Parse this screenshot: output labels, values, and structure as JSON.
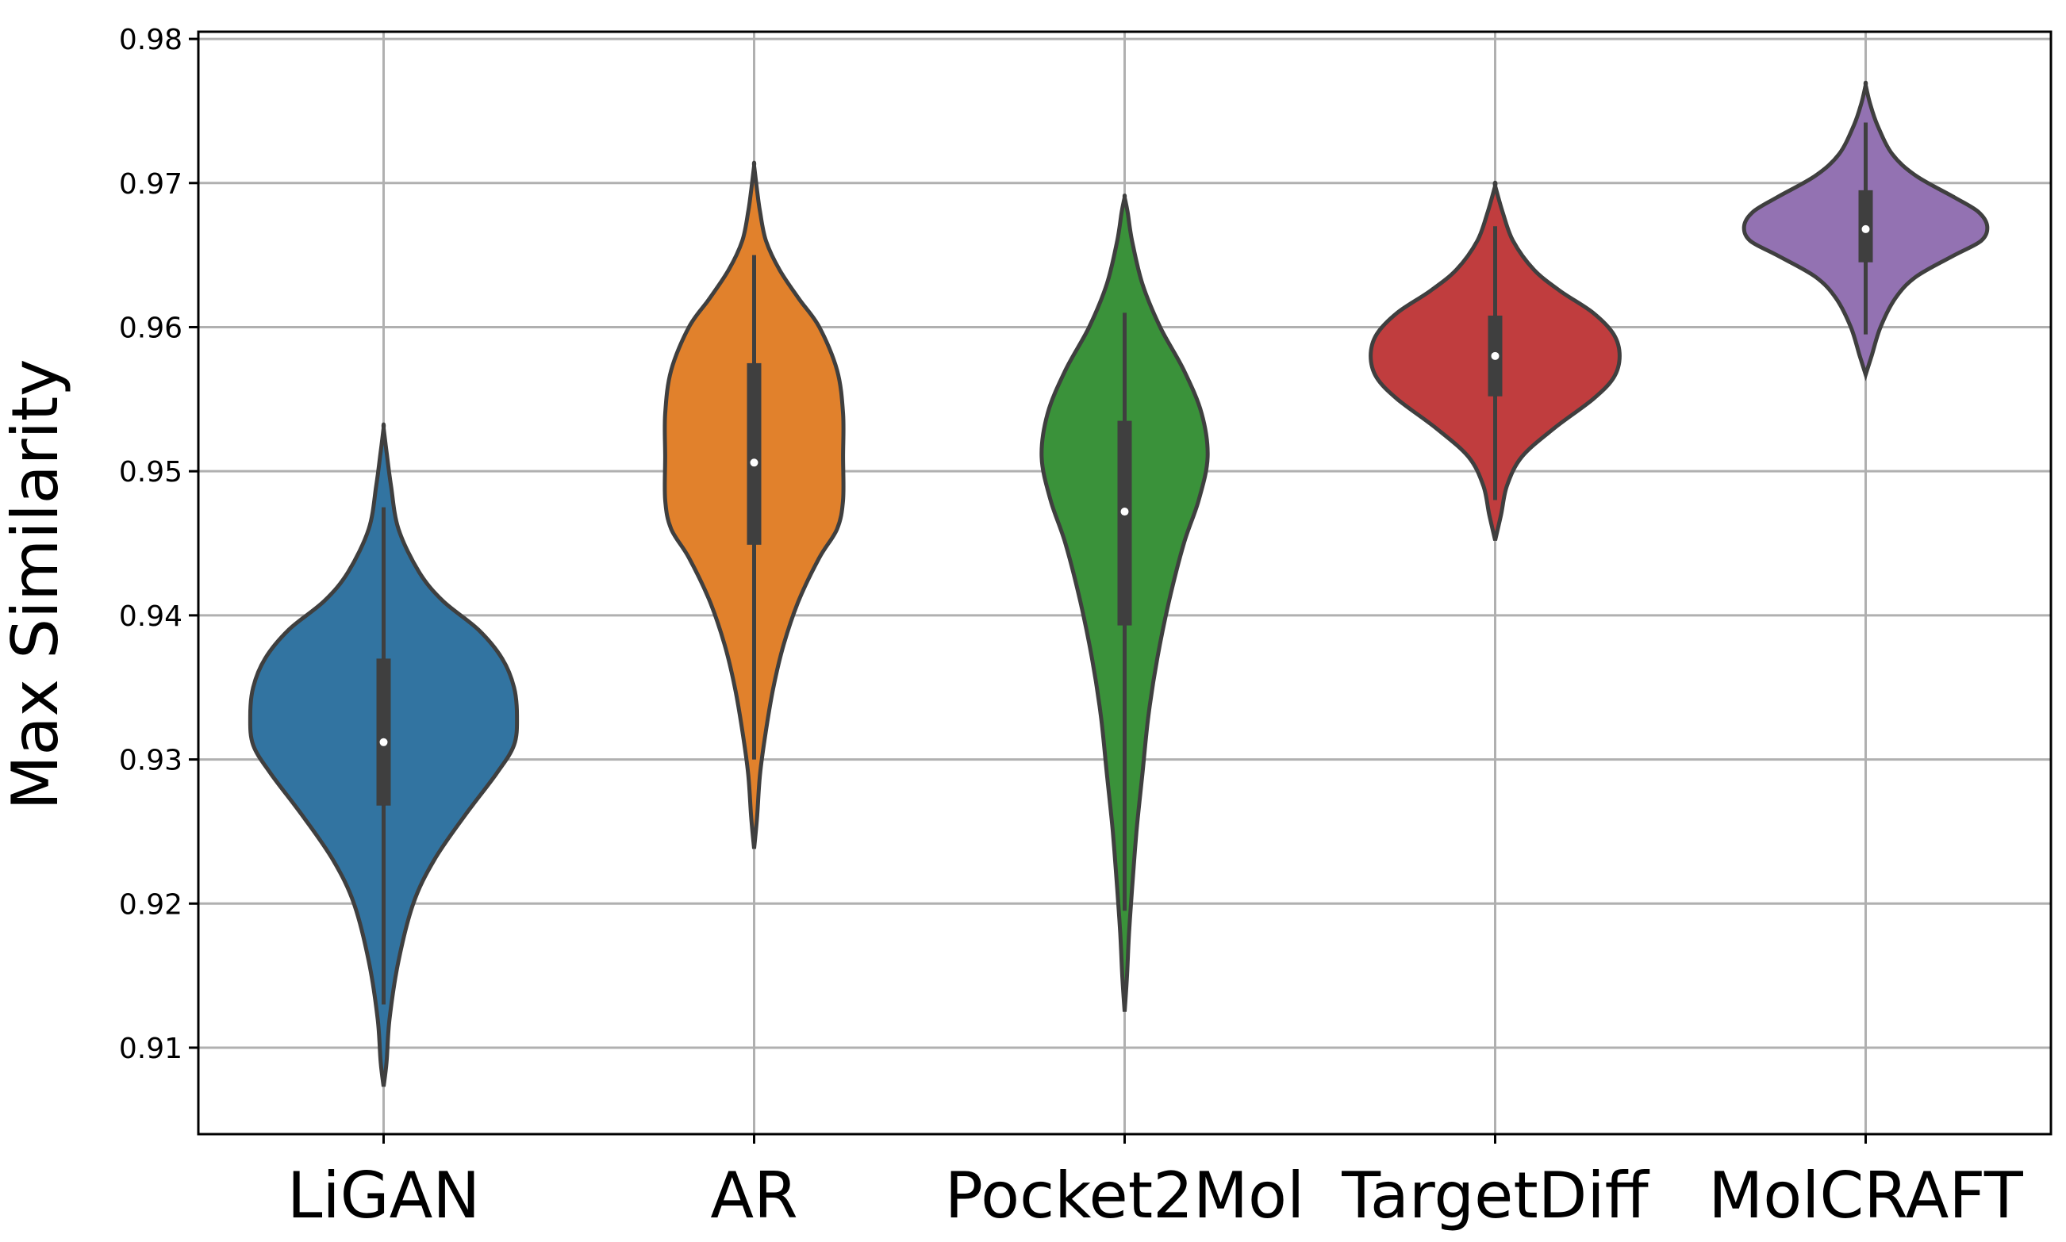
{
  "chart_data": {
    "type": "violin",
    "title": "",
    "xlabel": "",
    "ylabel": "Max Similarity",
    "ylim": [
      0.904,
      0.9805
    ],
    "yticks": [
      "0.91",
      "0.92",
      "0.93",
      "0.94",
      "0.95",
      "0.96",
      "0.97",
      "0.98"
    ],
    "grid": true,
    "categories": [
      "LiGAN",
      "AR",
      "Pocket2Mol",
      "TargetDiff",
      "MolCRAFT"
    ],
    "series": [
      {
        "color": "#3274a1",
        "median": 0.9312,
        "q1": 0.9268,
        "q3": 0.937,
        "whisker_low": 0.913,
        "whisker_high": 0.9475,
        "profile": [
          [
            0.9073,
            0
          ],
          [
            0.909,
            0.01
          ],
          [
            0.912,
            0.02
          ],
          [
            0.916,
            0.05
          ],
          [
            0.92,
            0.1
          ],
          [
            0.923,
            0.17
          ],
          [
            0.926,
            0.27
          ],
          [
            0.929,
            0.38
          ],
          [
            0.931,
            0.44
          ],
          [
            0.933,
            0.45
          ],
          [
            0.935,
            0.44
          ],
          [
            0.937,
            0.4
          ],
          [
            0.939,
            0.32
          ],
          [
            0.941,
            0.2
          ],
          [
            0.943,
            0.12
          ],
          [
            0.946,
            0.05
          ],
          [
            0.949,
            0.025
          ],
          [
            0.951,
            0.012
          ],
          [
            0.953,
            0
          ]
        ]
      },
      {
        "color": "#e1812c",
        "median": 0.9506,
        "q1": 0.9449,
        "q3": 0.9575,
        "whisker_low": 0.93,
        "whisker_high": 0.965,
        "profile": [
          [
            0.9238,
            0
          ],
          [
            0.926,
            0.01
          ],
          [
            0.929,
            0.02
          ],
          [
            0.932,
            0.04
          ],
          [
            0.935,
            0.065
          ],
          [
            0.938,
            0.1
          ],
          [
            0.941,
            0.15
          ],
          [
            0.944,
            0.22
          ],
          [
            0.946,
            0.28
          ],
          [
            0.948,
            0.3
          ],
          [
            0.951,
            0.3
          ],
          [
            0.954,
            0.3
          ],
          [
            0.957,
            0.28
          ],
          [
            0.96,
            0.22
          ],
          [
            0.962,
            0.15
          ],
          [
            0.964,
            0.085
          ],
          [
            0.966,
            0.04
          ],
          [
            0.968,
            0.02
          ],
          [
            0.9695,
            0.01
          ],
          [
            0.9712,
            0
          ]
        ]
      },
      {
        "color": "#3a923a",
        "median": 0.9472,
        "q1": 0.9393,
        "q3": 0.9535,
        "whisker_low": 0.9195,
        "whisker_high": 0.961,
        "profile": [
          [
            0.9125,
            0
          ],
          [
            0.915,
            0.008
          ],
          [
            0.918,
            0.015
          ],
          [
            0.921,
            0.025
          ],
          [
            0.925,
            0.04
          ],
          [
            0.929,
            0.06
          ],
          [
            0.933,
            0.08
          ],
          [
            0.937,
            0.11
          ],
          [
            0.941,
            0.15
          ],
          [
            0.945,
            0.2
          ],
          [
            0.948,
            0.25
          ],
          [
            0.951,
            0.28
          ],
          [
            0.954,
            0.26
          ],
          [
            0.957,
            0.2
          ],
          [
            0.96,
            0.12
          ],
          [
            0.963,
            0.06
          ],
          [
            0.966,
            0.025
          ],
          [
            0.968,
            0.01
          ],
          [
            0.969,
            0
          ]
        ]
      },
      {
        "color": "#c03d3e",
        "median": 0.958,
        "q1": 0.9552,
        "q3": 0.9608,
        "whisker_low": 0.948,
        "whisker_high": 0.967,
        "profile": [
          [
            0.9452,
            0
          ],
          [
            0.947,
            0.02
          ],
          [
            0.949,
            0.04
          ],
          [
            0.951,
            0.09
          ],
          [
            0.953,
            0.2
          ],
          [
            0.955,
            0.33
          ],
          [
            0.9565,
            0.4
          ],
          [
            0.958,
            0.42
          ],
          [
            0.9595,
            0.4
          ],
          [
            0.961,
            0.33
          ],
          [
            0.9625,
            0.22
          ],
          [
            0.964,
            0.13
          ],
          [
            0.966,
            0.06
          ],
          [
            0.968,
            0.025
          ],
          [
            0.9698,
            0
          ]
        ]
      },
      {
        "color": "#9372b2",
        "median": 0.9668,
        "q1": 0.9645,
        "q3": 0.9695,
        "whisker_low": 0.9595,
        "whisker_high": 0.9742,
        "profile": [
          [
            0.9567,
            0
          ],
          [
            0.958,
            0.02
          ],
          [
            0.96,
            0.05
          ],
          [
            0.962,
            0.1
          ],
          [
            0.9635,
            0.17
          ],
          [
            0.965,
            0.3
          ],
          [
            0.966,
            0.39
          ],
          [
            0.967,
            0.41
          ],
          [
            0.968,
            0.38
          ],
          [
            0.969,
            0.3
          ],
          [
            0.9705,
            0.17
          ],
          [
            0.972,
            0.09
          ],
          [
            0.974,
            0.04
          ],
          [
            0.9755,
            0.015
          ],
          [
            0.9768,
            0
          ]
        ]
      }
    ]
  }
}
